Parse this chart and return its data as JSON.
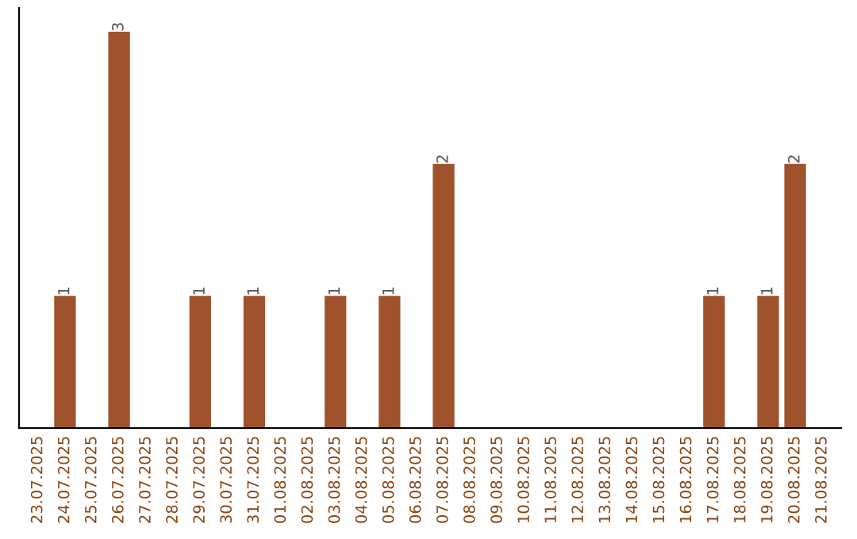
{
  "chart_data": {
    "type": "bar",
    "categories": [
      "23.07.2025",
      "24.07.2025",
      "25.07.2025",
      "26.07.2025",
      "27.07.2025",
      "28.07.2025",
      "29.07.2025",
      "30.07.2025",
      "31.07.2025",
      "01.08.2025",
      "02.08.2025",
      "03.08.2025",
      "04.08.2025",
      "05.08.2025",
      "06.08.2025",
      "07.08.2025",
      "08.08.2025",
      "09.08.2025",
      "10.08.2025",
      "11.08.2025",
      "12.08.2025",
      "13.08.2025",
      "14.08.2025",
      "15.08.2025",
      "16.08.2025",
      "17.08.2025",
      "18.08.2025",
      "19.08.2025",
      "20.08.2025",
      "21.08.2025"
    ],
    "values": [
      0,
      1,
      0,
      3,
      0,
      0,
      1,
      0,
      1,
      0,
      0,
      1,
      0,
      1,
      0,
      2,
      0,
      0,
      0,
      0,
      0,
      0,
      0,
      0,
      0,
      1,
      0,
      1,
      2,
      0
    ],
    "value_labels": [
      null,
      "1",
      null,
      "3",
      null,
      null,
      "1",
      null,
      "1",
      null,
      null,
      "1",
      null,
      "1",
      null,
      "2",
      null,
      null,
      null,
      null,
      null,
      null,
      null,
      null,
      null,
      "1",
      null,
      "1",
      "2",
      null
    ],
    "color": "#a0522d",
    "ylim": [
      0,
      3.18
    ],
    "tick_labels": "x",
    "grid": false,
    "legend": false
  }
}
